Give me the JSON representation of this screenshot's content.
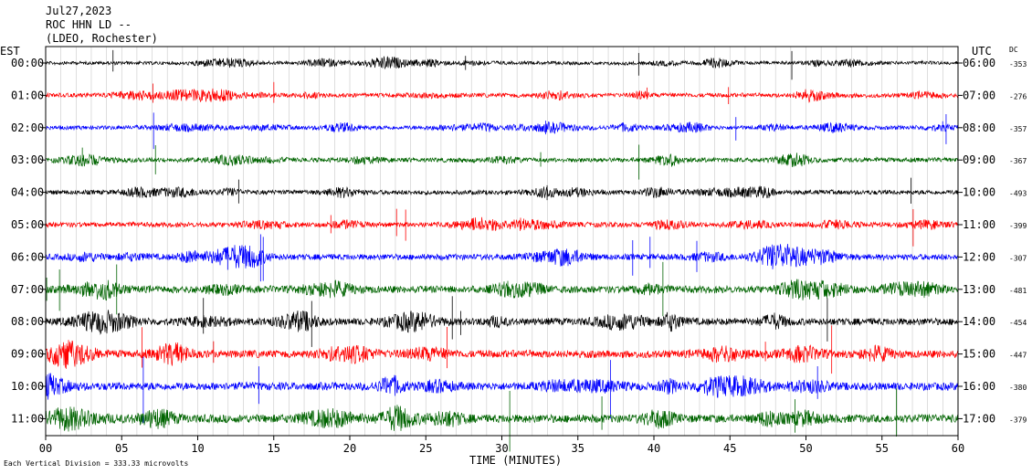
{
  "header": {
    "date": "Jul27,2023",
    "station": "ROC HHN LD --",
    "network": "(LDEO, Rochester)"
  },
  "left_axis_title": "EST",
  "right_axis_title": "UTC",
  "dc_header": "DC",
  "footer_note": "Each Vertical Division =  333.33 microvolts",
  "chart_data": {
    "type": "line",
    "title": "",
    "xlabel": "TIME (MINUTES)",
    "xlim": [
      0,
      60
    ],
    "x_ticks": [
      0,
      5,
      10,
      15,
      20,
      25,
      30,
      35,
      40,
      45,
      50,
      55,
      60
    ],
    "x_tick_labels": [
      "00",
      "05",
      "10",
      "15",
      "20",
      "25",
      "30",
      "35",
      "40",
      "45",
      "50",
      "55",
      "60"
    ],
    "grid": true,
    "trace_colors": [
      "#000000",
      "#ff0000",
      "#0000ff",
      "#006400"
    ],
    "rows": [
      {
        "est": "00:00",
        "utc": "06:00",
        "dc": "-353",
        "amplitude": 0.45
      },
      {
        "est": "01:00",
        "utc": "07:00",
        "dc": "-276",
        "amplitude": 0.55
      },
      {
        "est": "02:00",
        "utc": "08:00",
        "dc": "-357",
        "amplitude": 0.55
      },
      {
        "est": "03:00",
        "utc": "09:00",
        "dc": "-367",
        "amplitude": 0.6
      },
      {
        "est": "04:00",
        "utc": "10:00",
        "dc": "-493",
        "amplitude": 0.6
      },
      {
        "est": "05:00",
        "utc": "11:00",
        "dc": "-399",
        "amplitude": 0.65
      },
      {
        "est": "06:00",
        "utc": "12:00",
        "dc": "-307",
        "amplitude": 0.8
      },
      {
        "est": "07:00",
        "utc": "13:00",
        "dc": "-481",
        "amplitude": 0.95
      },
      {
        "est": "08:00",
        "utc": "14:00",
        "dc": "-454",
        "amplitude": 0.95
      },
      {
        "est": "09:00",
        "utc": "15:00",
        "dc": "-447",
        "amplitude": 1.0
      },
      {
        "est": "10:00",
        "utc": "16:00",
        "dc": "-380",
        "amplitude": 1.05
      },
      {
        "est": "11:00",
        "utc": "17:00",
        "dc": "-379",
        "amplitude": 1.1
      }
    ]
  }
}
